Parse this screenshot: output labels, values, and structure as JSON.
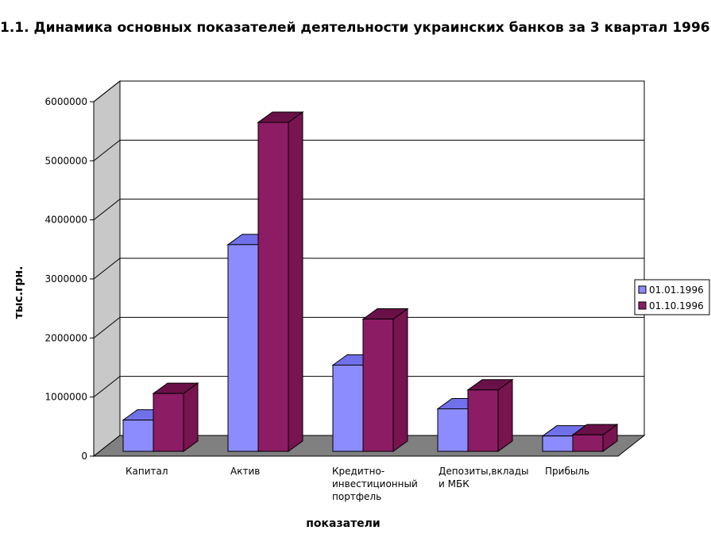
{
  "chart_data": {
    "type": "bar",
    "title": "1.1. Динамика основных показателей деятельности украинских банков за 3 квартал 1996 г.",
    "xlabel": "показатели",
    "ylabel": "тыс.грн.",
    "ylim": [
      0,
      6000000
    ],
    "yticks": [
      "0",
      "1000000",
      "2000000",
      "3000000",
      "4000000",
      "5000000",
      "6000000"
    ],
    "categories": [
      [
        "Капитал"
      ],
      [
        "Актив"
      ],
      [
        "Кредитно-",
        "инвестиционный",
        "портфель"
      ],
      [
        "Депозиты,вклады",
        "и МБК"
      ],
      [
        "Прибыль"
      ]
    ],
    "series": [
      {
        "name": "01.01.1996",
        "values": [
          530000,
          3500000,
          1460000,
          720000,
          260000
        ]
      },
      {
        "name": "01.10.1996",
        "values": [
          980000,
          5570000,
          2240000,
          1040000,
          280000
        ]
      }
    ],
    "grid": true,
    "legend_position": "right",
    "colors": {
      "series0_front": "#8c8cff",
      "series0_top": "#7070ea",
      "series0_side": "#6060cc",
      "series1_front": "#8c1c64",
      "series1_top": "#6a1048",
      "series1_side": "#781450",
      "wall": "#ffffff",
      "side_wall": "#c8c8c8",
      "floor": "#808080"
    }
  }
}
